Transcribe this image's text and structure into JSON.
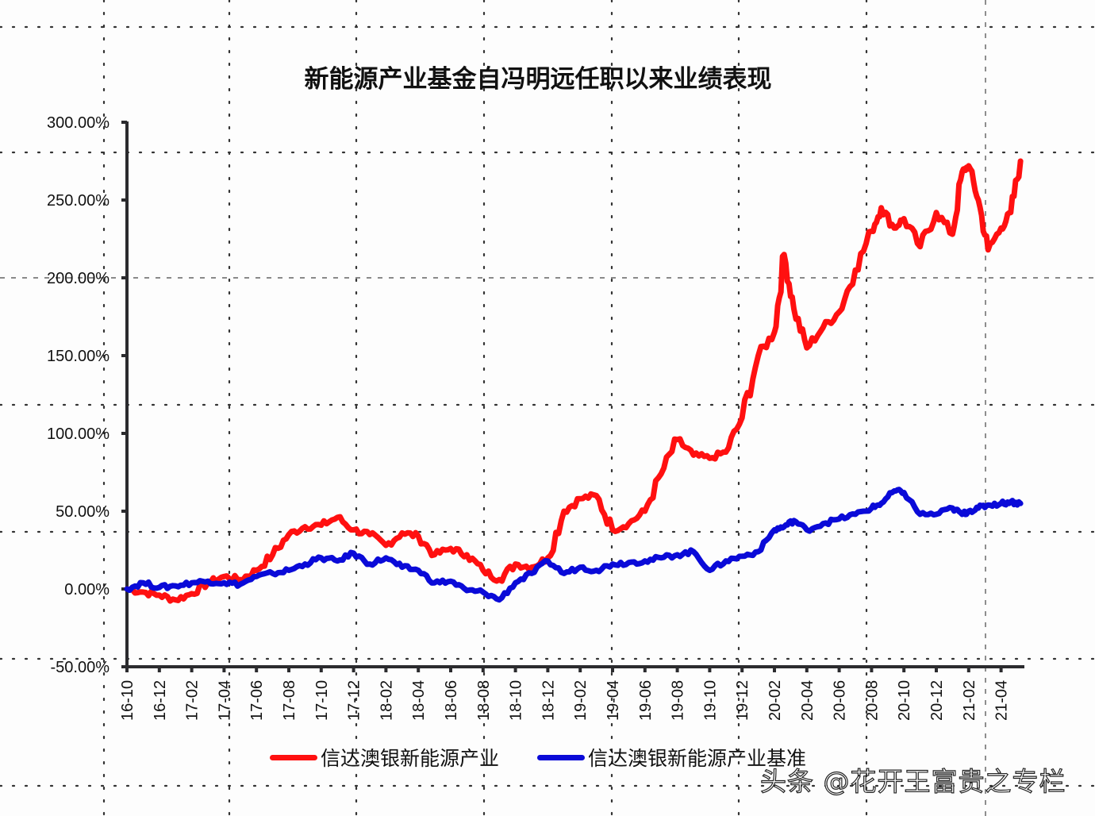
{
  "title": "新能源产业基金自冯明远任职以来业绩表现",
  "legend": [
    {
      "label": "信达澳银新能源产业",
      "color": "#ff1010"
    },
    {
      "label": "信达澳银新能源产业基准",
      "color": "#0a0ad8"
    }
  ],
  "watermark": "头条 @花开王富贵之专栏",
  "chart_data": {
    "type": "line",
    "title": "新能源产业基金自冯明远任职以来业绩表现",
    "xlabel": "",
    "ylabel": "",
    "ylim": [
      -50,
      300
    ],
    "yticks": [
      "300.00%",
      "250.00%",
      "200.00%",
      "150.00%",
      "100.00%",
      "50.00%",
      "0.00%",
      "-50.00%"
    ],
    "ytick_values": [
      300,
      250,
      200,
      150,
      100,
      50,
      0,
      -50
    ],
    "xticks": [
      "16-10",
      "16-12",
      "17-02",
      "17-04",
      "17-06",
      "17-08",
      "17-10",
      "17-12",
      "18-02",
      "18-04",
      "18-06",
      "18-08",
      "18-10",
      "18-12",
      "19-02",
      "19-04",
      "19-06",
      "19-08",
      "19-10",
      "19-12",
      "20-02",
      "20-04",
      "20-06",
      "20-08",
      "20-10",
      "20-12",
      "21-02",
      "21-04"
    ],
    "grid": false,
    "legend_position": "bottom",
    "x": [
      0,
      0.5,
      1,
      1.5,
      2,
      2.5,
      3,
      3.5,
      4,
      4.5,
      5,
      5.5,
      6,
      6.5,
      7,
      7.5,
      8,
      8.5,
      9,
      9.5,
      10,
      10.5,
      11,
      11.5,
      12,
      12.5,
      13,
      13.5,
      14,
      14.5,
      15,
      15.5,
      16,
      16.5,
      17,
      17.5,
      18,
      18.5,
      19,
      19.5,
      20,
      20.3,
      20.6,
      21,
      21.5,
      22,
      22.5,
      23,
      23.3,
      23.7,
      24,
      24.5,
      25,
      25.5,
      25.8,
      26,
      26.3,
      26.6,
      27,
      27.3,
      27.6
    ],
    "series": [
      {
        "name": "信达澳银新能源产业",
        "color": "#ff1010",
        "values": [
          0,
          -2,
          -4,
          -7,
          -3,
          4,
          8,
          6,
          12,
          22,
          35,
          40,
          41,
          46,
          38,
          35,
          28,
          36,
          34,
          22,
          26,
          22,
          12,
          6,
          16,
          14,
          20,
          50,
          58,
          60,
          38,
          42,
          50,
          74,
          96,
          86,
          84,
          88,
          110,
          150,
          165,
          215,
          180,
          155,
          168,
          178,
          205,
          230,
          245,
          232,
          238,
          220,
          242,
          228,
          268,
          272,
          250,
          218,
          232,
          242,
          275
        ]
      },
      {
        "name": "信达澳银新能源产业基准",
        "color": "#0a0ad8",
        "values": [
          0,
          4,
          1,
          2,
          4,
          5,
          4,
          3,
          8,
          10,
          12,
          16,
          20,
          18,
          23,
          16,
          20,
          14,
          12,
          4,
          5,
          -1,
          -2,
          -7,
          4,
          10,
          18,
          10,
          14,
          12,
          16,
          17,
          18,
          20,
          22,
          24,
          12,
          18,
          21,
          24,
          38,
          40,
          44,
          38,
          42,
          45,
          48,
          52,
          55,
          63,
          62,
          48,
          48,
          52,
          48,
          50,
          52,
          54,
          55,
          56,
          55
        ]
      }
    ]
  }
}
